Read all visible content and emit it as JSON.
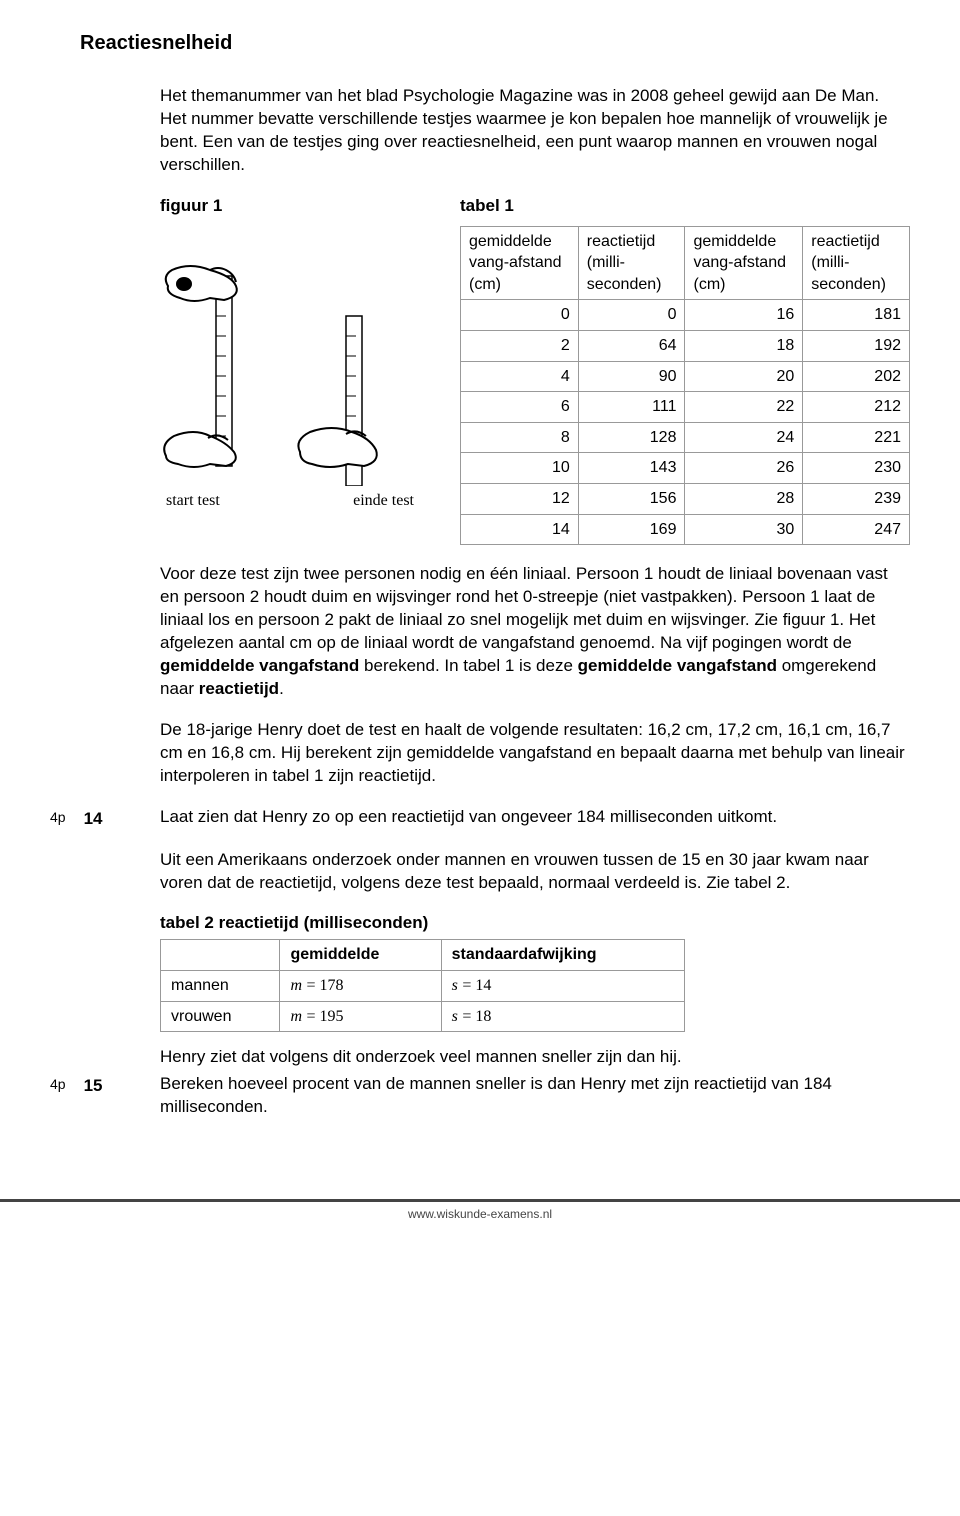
{
  "title": "Reactiesnelheid",
  "intro": "Het themanummer van het blad Psychologie Magazine was in 2008 geheel gewijd aan De Man. Het nummer bevatte verschillende testjes waarmee je kon bepalen hoe mannelijk of vrouwelijk je bent. Een van de testjes ging over reactiesnelheid, een punt waarop mannen en vrouwen nogal verschillen.",
  "figure": {
    "label": "figuur 1",
    "caption_left": "start test",
    "caption_right": "einde test"
  },
  "table1": {
    "label": "tabel 1",
    "headers": [
      "gemiddelde vang-afstand (cm)",
      "reactietijd (milli-seconden)",
      "gemiddelde vang-afstand (cm)",
      "reactietijd (milli-seconden)"
    ],
    "rows": [
      [
        "0",
        "0",
        "16",
        "181"
      ],
      [
        "2",
        "64",
        "18",
        "192"
      ],
      [
        "4",
        "90",
        "20",
        "202"
      ],
      [
        "6",
        "111",
        "22",
        "212"
      ],
      [
        "8",
        "128",
        "24",
        "221"
      ],
      [
        "10",
        "143",
        "26",
        "230"
      ],
      [
        "12",
        "156",
        "28",
        "239"
      ],
      [
        "14",
        "169",
        "30",
        "247"
      ]
    ]
  },
  "para2": "Voor deze test zijn twee personen nodig en één liniaal.\nPersoon 1 houdt de liniaal bovenaan vast en persoon 2 houdt duim en wijsvinger rond het 0-streepje (niet vastpakken). Persoon 1 laat de liniaal los en persoon 2 pakt de liniaal zo snel mogelijk met duim en wijsvinger. Zie figuur 1.\nHet afgelezen aantal cm op de liniaal wordt de vangafstand genoemd. Na vijf pogingen wordt de gemiddelde vangafstand berekend. In tabel 1 is deze gemiddelde vangafstand omgerekend naar reactietijd.",
  "para3": "De 18-jarige Henry doet de test en haalt de volgende resultaten: 16,2 cm, 17,2 cm, 16,1 cm, 16,7 cm en 16,8 cm. Hij berekent zijn gemiddelde vangafstand en bepaalt daarna met behulp van lineair interpoleren in tabel 1 zijn reactietijd.",
  "q14": {
    "pts": "4p",
    "num": "14",
    "text": "Laat zien dat Henry zo op een reactietijd van ongeveer 184 milliseconden uitkomt."
  },
  "para4": "Uit een Amerikaans onderzoek onder mannen en vrouwen tussen de 15 en 30 jaar kwam naar voren dat de reactietijd, volgens deze test bepaald, normaal verdeeld is. Zie tabel 2.",
  "table2": {
    "title": "tabel 2  reactietijd (milliseconden)",
    "headers": [
      "",
      "gemiddelde",
      "standaardafwijking"
    ],
    "rows": [
      {
        "label": "mannen",
        "m": "178",
        "s": "14"
      },
      {
        "label": "vrouwen",
        "m": "195",
        "s": "18"
      }
    ]
  },
  "para5": "Henry ziet dat volgens dit onderzoek veel mannen sneller zijn dan hij.",
  "q15": {
    "pts": "4p",
    "num": "15",
    "text": "Bereken hoeveel procent van de mannen sneller is dan Henry met zijn reactietijd van 184 milliseconden."
  },
  "footer": "www.wiskunde-examens.nl"
}
